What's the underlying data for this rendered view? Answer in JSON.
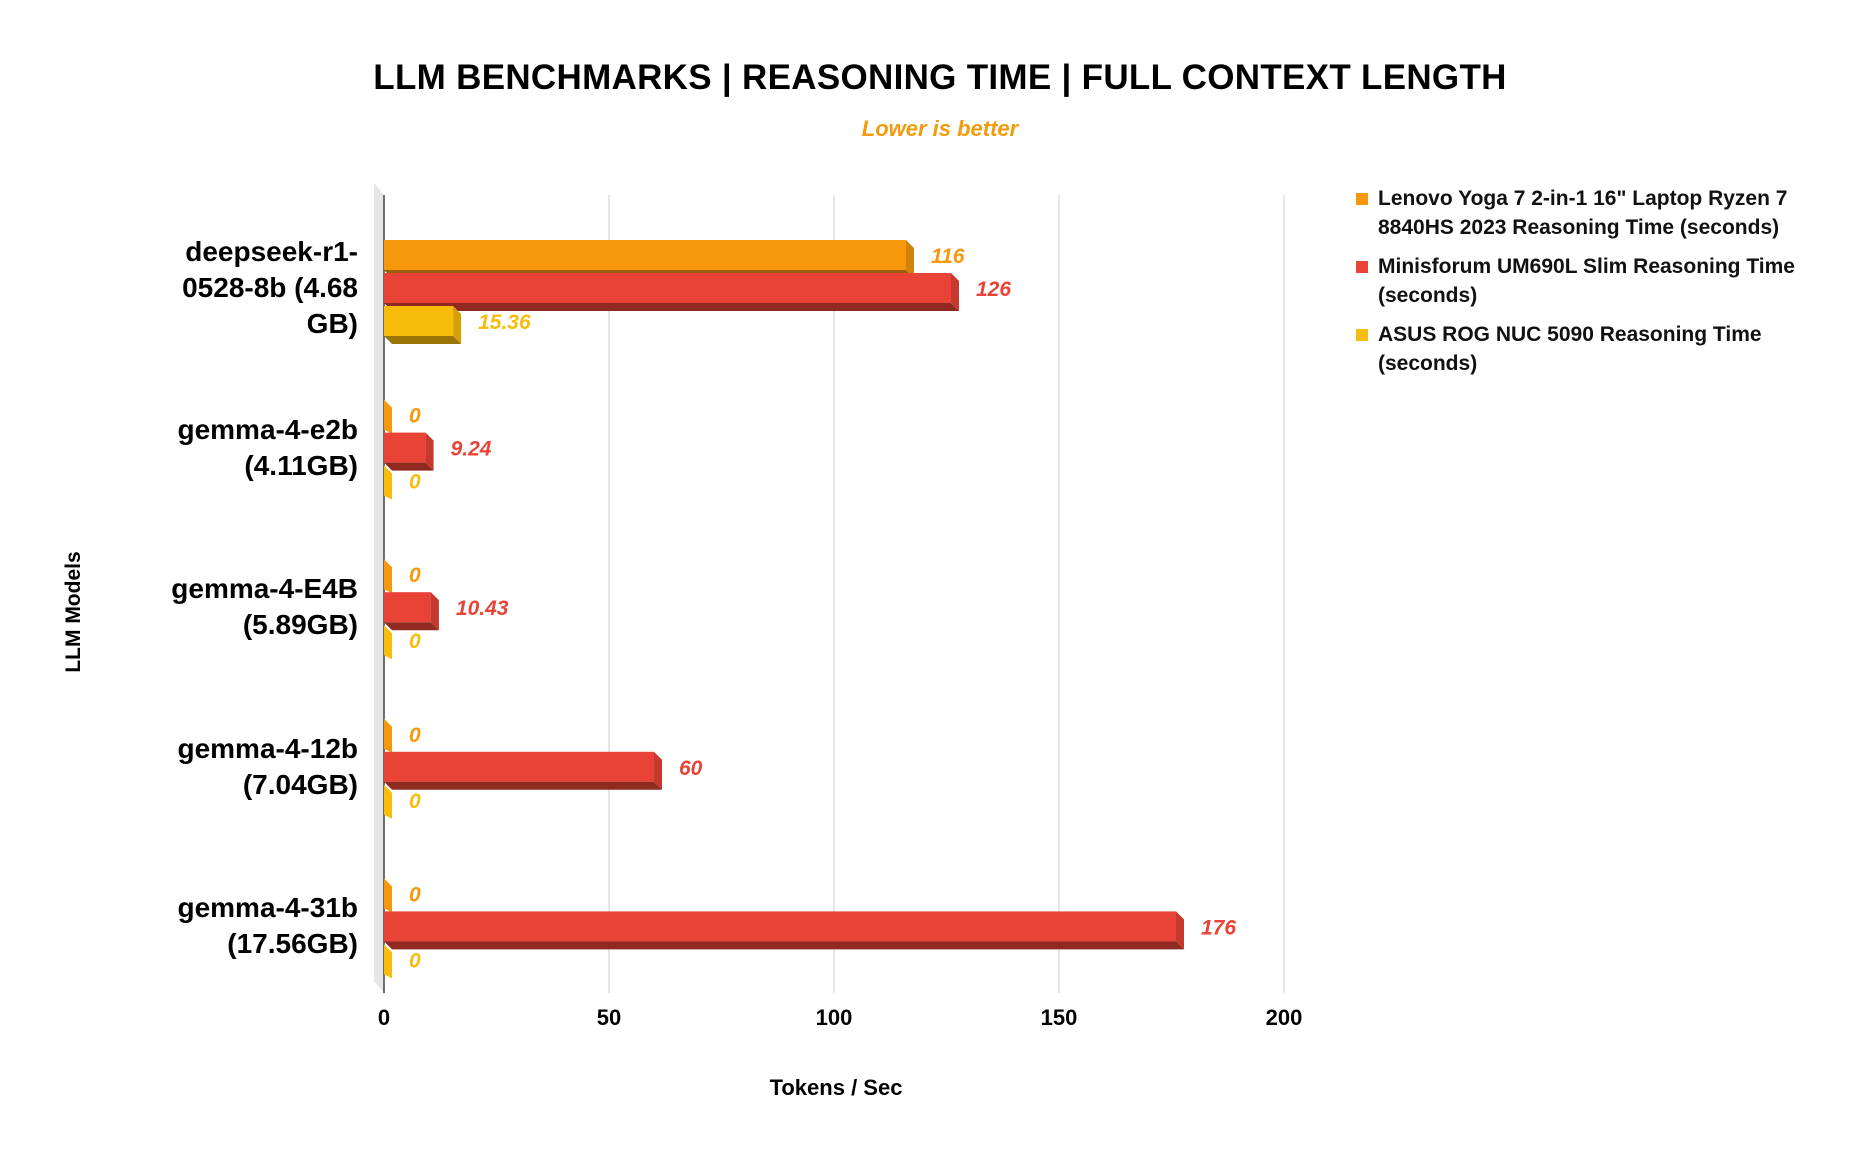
{
  "chart_data": {
    "type": "bar",
    "orientation": "horizontal",
    "title": "LLM BENCHMARKS | REASONING TIME | FULL CONTEXT LENGTH",
    "subtitle": "Lower is better",
    "xlabel": "Tokens / Sec",
    "ylabel": "LLM Models",
    "xlim": [
      0,
      200
    ],
    "xticks": [
      "0",
      "50",
      "100",
      "150",
      "200"
    ],
    "grid": true,
    "legend_position": "right",
    "categories": [
      "deepseek-r1-0528-8b (4.68 GB)",
      "gemma-4-e2b (4.11GB)",
      "gemma-4-E4B (5.89GB)",
      "gemma-4-12b (7.04GB)",
      "gemma-4-31b (17.56GB)"
    ],
    "series": [
      {
        "name": "Lenovo Yoga 7 2-in-1 16\" Laptop Ryzen 7 8840HS 2023 Reasoning Time (seconds)",
        "color": "#f7980c",
        "values": [
          116,
          0,
          0,
          0,
          0
        ],
        "labels": [
          "116",
          "0",
          "0",
          "0",
          "0"
        ]
      },
      {
        "name": "Minisforum UM690L Slim Reasoning Time (seconds)",
        "color": "#e84336",
        "values": [
          126,
          9.24,
          10.43,
          60,
          176
        ],
        "labels": [
          "126",
          "9.24",
          "10.43",
          "60",
          "176"
        ]
      },
      {
        "name": "ASUS ROG NUC 5090 Reasoning Time (seconds)",
        "color": "#f8bc0b",
        "values": [
          15.36,
          0,
          0,
          0,
          0
        ],
        "labels": [
          "15.36",
          "0",
          "0",
          "0",
          "0"
        ]
      }
    ]
  }
}
